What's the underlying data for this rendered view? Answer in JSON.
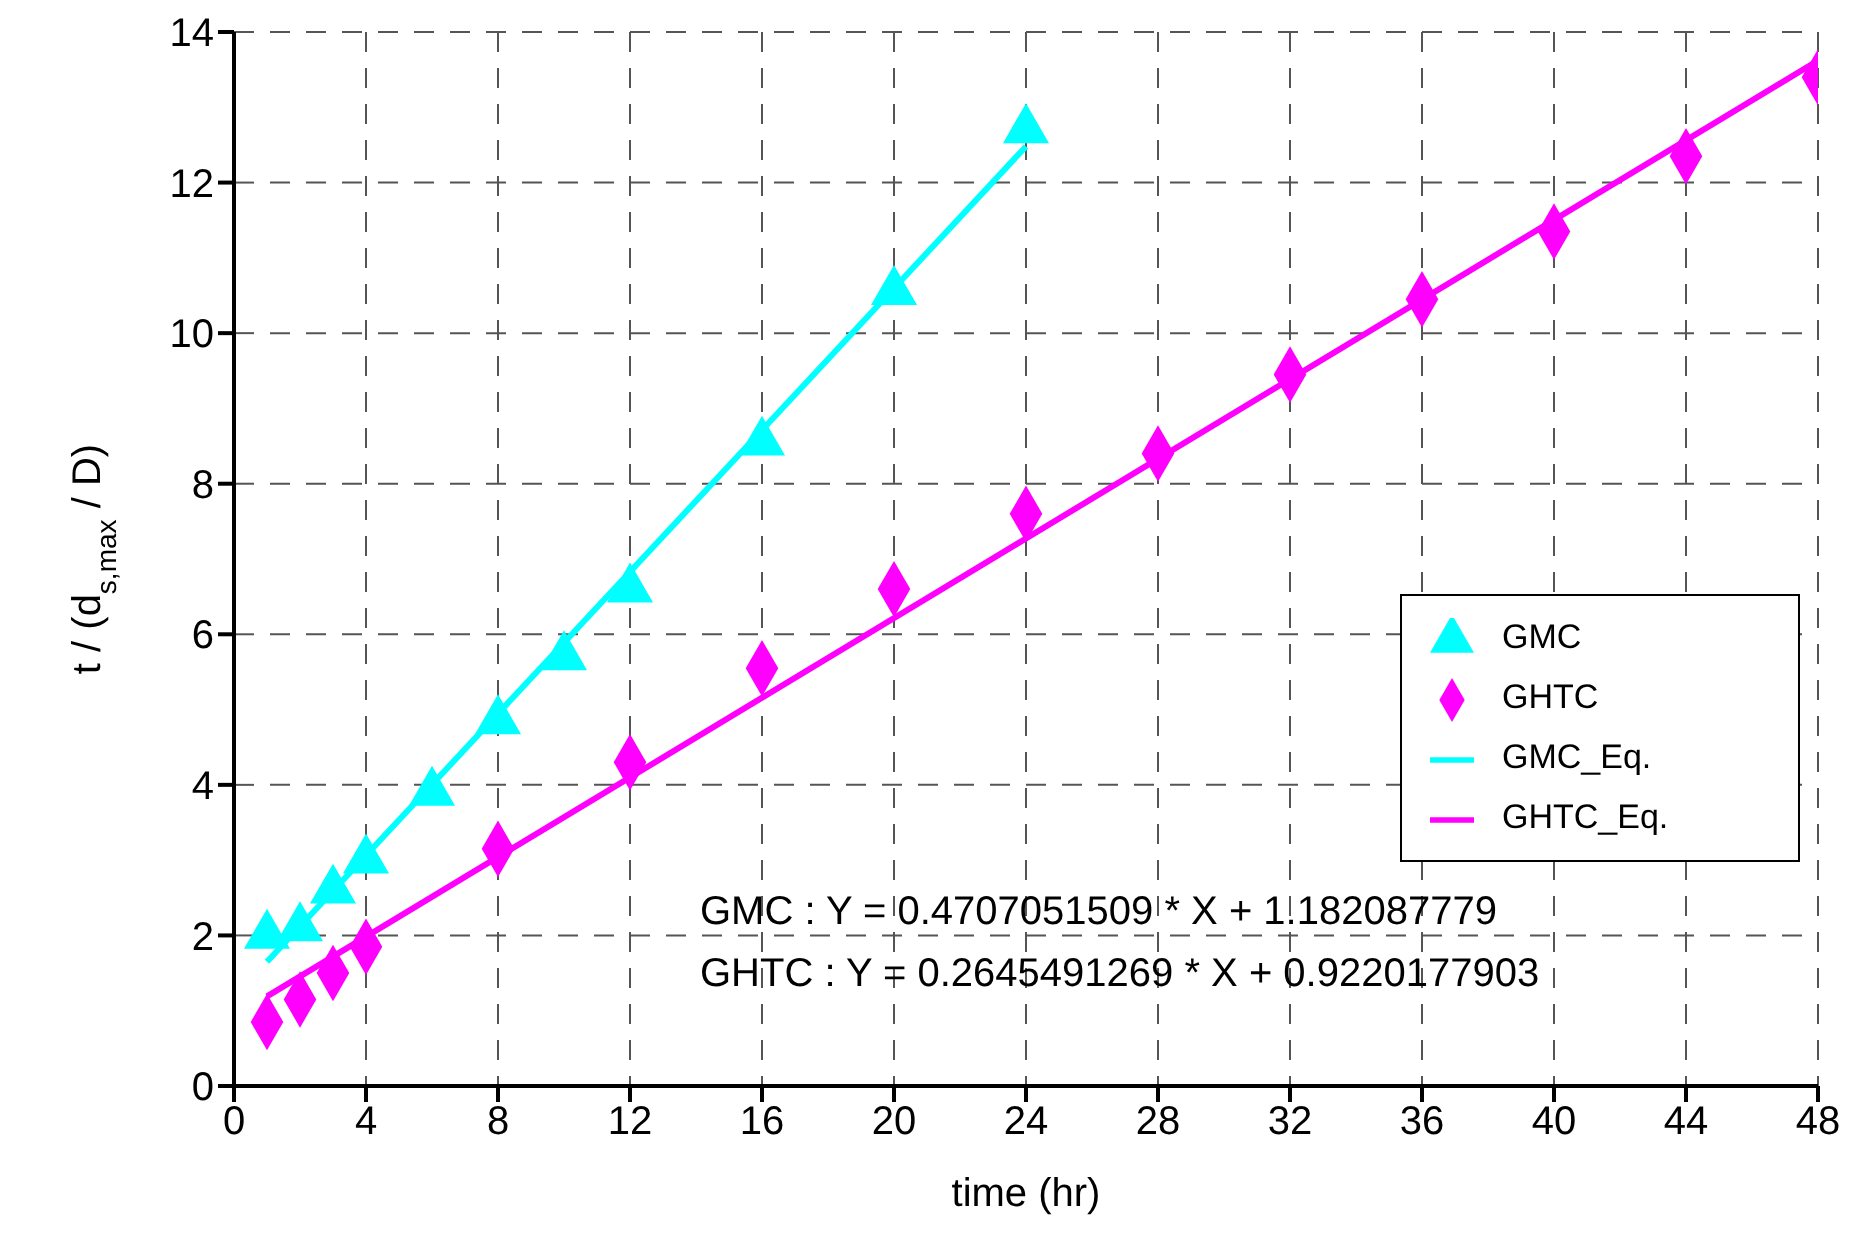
{
  "chart_data": {
    "type": "scatter",
    "xlabel": "time (hr)",
    "ylabel": "t / (d$_{s,max}$ / D)",
    "xlim": [
      0,
      48
    ],
    "xticks": [
      0,
      4,
      8,
      12,
      16,
      20,
      24,
      28,
      32,
      36,
      40,
      44,
      48
    ],
    "ylim": [
      0,
      14
    ],
    "yticks": [
      0,
      2,
      4,
      6,
      8,
      10,
      12,
      14
    ],
    "grid": true,
    "legend": "right",
    "annotations": [
      "GMC : Y = 0.4707051509 * X + 1.182087779",
      "GHTC : Y = 0.2645491269 * X + 0.9220177903"
    ],
    "series": [
      {
        "name": "GMC",
        "type": "scatter",
        "marker": "triangle",
        "color": "#00ffff",
        "x": [
          1,
          2,
          3,
          4,
          6,
          8,
          10,
          12,
          16,
          20,
          24
        ],
        "values": [
          2.0,
          2.1,
          2.6,
          3.0,
          3.9,
          4.85,
          5.7,
          6.6,
          8.55,
          10.55,
          12.7
        ]
      },
      {
        "name": "GHTC",
        "type": "scatter",
        "marker": "diamond",
        "color": "#ff00ff",
        "x": [
          1,
          2,
          3,
          4,
          8,
          12,
          16,
          20,
          24,
          28,
          32,
          36,
          40,
          44,
          48
        ],
        "values": [
          0.85,
          1.15,
          1.5,
          1.85,
          3.15,
          4.3,
          5.55,
          6.6,
          7.6,
          8.4,
          9.45,
          10.45,
          11.35,
          12.35,
          13.4
        ]
      },
      {
        "name": "GMC_Eq.",
        "type": "line",
        "marker": "none",
        "color": "#00ffff",
        "x": [
          1,
          24
        ],
        "values": [
          1.65,
          12.48
        ]
      },
      {
        "name": "GHTC_Eq.",
        "type": "line",
        "marker": "none",
        "color": "#ff00ff",
        "x": [
          1,
          48
        ],
        "values": [
          1.19,
          13.62
        ]
      }
    ]
  }
}
